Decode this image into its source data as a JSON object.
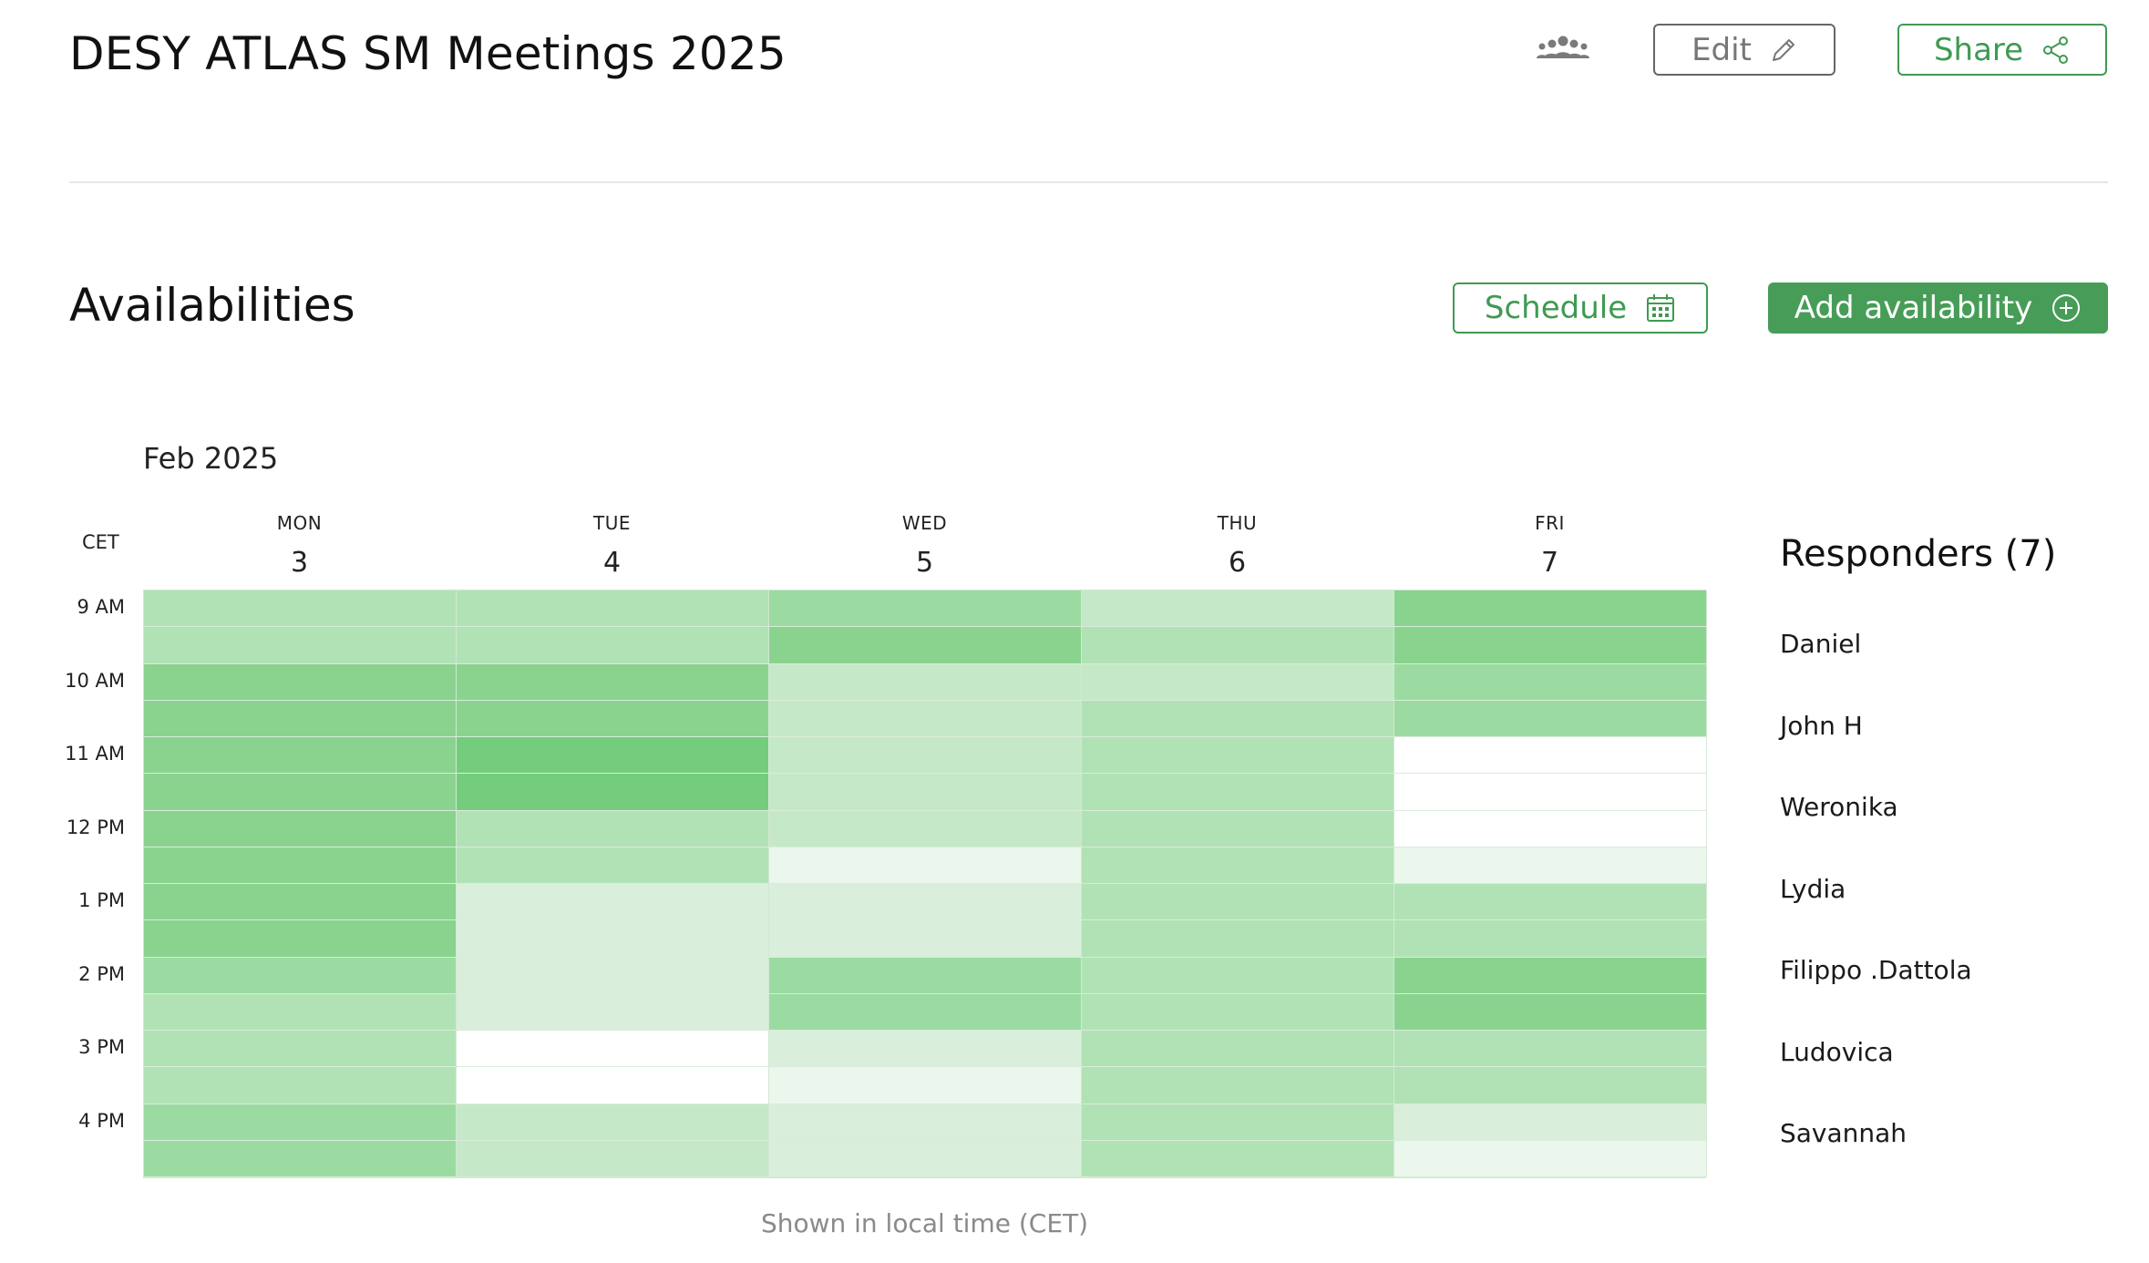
{
  "event": {
    "title": "DESY ATLAS SM Meetings 2025"
  },
  "toolbar": {
    "people_icon": "people-group-icon",
    "edit_label": "Edit",
    "edit_icon": "pencil-icon",
    "share_label": "Share",
    "share_icon": "share-icon"
  },
  "availabilities": {
    "title": "Availabilities",
    "schedule_label": "Schedule",
    "schedule_icon": "calendar-icon",
    "add_label": "Add availability",
    "add_icon": "plus-circle-icon"
  },
  "calendar": {
    "month": "Feb 2025",
    "timezone": "CET",
    "days": [
      {
        "name": "MON",
        "date": "3"
      },
      {
        "name": "TUE",
        "date": "4"
      },
      {
        "name": "WED",
        "date": "5"
      },
      {
        "name": "THU",
        "date": "6"
      },
      {
        "name": "FRI",
        "date": "7"
      }
    ],
    "hours": [
      "9 AM",
      "10 AM",
      "11 AM",
      "12 PM",
      "1 PM",
      "2 PM",
      "3 PM",
      "4 PM"
    ],
    "heat_colors": [
      "#ffffff",
      "#ebf6ec",
      "#d9efdc",
      "#c5e9c8",
      "#b1e2b5",
      "#9bdba1",
      "#89d38f",
      "#74cd7d"
    ],
    "availability_levels": [
      [
        4,
        4,
        6,
        6,
        6,
        6,
        6,
        6,
        6,
        6,
        5,
        4,
        4,
        4,
        5,
        5
      ],
      [
        4,
        4,
        6,
        6,
        7,
        7,
        4,
        4,
        2,
        2,
        2,
        2,
        0,
        0,
        3,
        3
      ],
      [
        5,
        6,
        3,
        3,
        3,
        3,
        3,
        1,
        2,
        2,
        5,
        5,
        2,
        1,
        2,
        2
      ],
      [
        3,
        4,
        3,
        4,
        4,
        4,
        4,
        4,
        4,
        4,
        4,
        4,
        4,
        4,
        4,
        4
      ],
      [
        6,
        6,
        5,
        5,
        0,
        0,
        0,
        1,
        4,
        4,
        6,
        6,
        4,
        4,
        2,
        1
      ]
    ],
    "footnote": "Shown in local time (CET)"
  },
  "responders": {
    "title": "Responders (7)",
    "names": [
      "Daniel",
      "John H",
      "Weronika",
      "Lydia",
      "Filippo .Dattola",
      "Ludovica",
      "Savannah"
    ]
  }
}
